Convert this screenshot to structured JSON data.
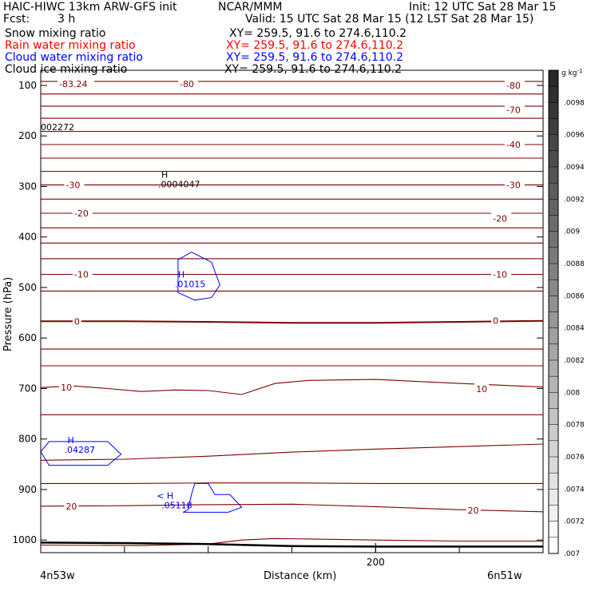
{
  "header": {
    "model": "HAIC-HIWC 13km ARW-GFS init",
    "org": "NCAR/MMM",
    "init": "Init: 12 UTC Sat 28 Mar 15",
    "fcst_label": "Fcst:",
    "fcst_value": "3 h",
    "valid": "Valid: 15 UTC Sat 28 Mar 15 (12 LST Sat 28 Mar 15)"
  },
  "fields": [
    {
      "name": "Snow mixing ratio",
      "xy": "XY= 259.5, 91.6 to 274.6,110.2",
      "color": "#000000"
    },
    {
      "name": "Rain water mixing ratio",
      "xy": "XY= 259.5, 91.6 to 274.6,110.2",
      "color": "#ff0000"
    },
    {
      "name": "Cloud water mixing ratio",
      "xy": "XY= 259.5, 91.6 to 274.6,110.2",
      "color": "#0000ff"
    },
    {
      "name": "Cloud ice mixing ratio",
      "xy": "XY= 259.5, 91.6 to 274.6,110.2",
      "color": "#000000"
    }
  ],
  "chart_data": {
    "type": "contour",
    "xlabel": "Distance (km)",
    "ylabel": "Pressure (hPa)",
    "xlim": [
      0,
      300
    ],
    "ylim": [
      1025,
      70
    ],
    "yscale": "linear",
    "x_ticks": [
      {
        "value": 200,
        "label": "200"
      }
    ],
    "x_minor": [
      0,
      50,
      100,
      150,
      200,
      250,
      300
    ],
    "y_ticks": [
      {
        "value": 100,
        "label": "100"
      },
      {
        "value": 200,
        "label": "200"
      },
      {
        "value": 300,
        "label": "300"
      },
      {
        "value": 400,
        "label": "400"
      },
      {
        "value": 500,
        "label": "500"
      },
      {
        "value": 600,
        "label": "600"
      },
      {
        "value": 700,
        "label": "700"
      },
      {
        "value": 800,
        "label": "800"
      },
      {
        "value": 900,
        "label": "900"
      },
      {
        "value": 1000,
        "label": "1000"
      }
    ],
    "left_endpoint": "4n53w",
    "right_endpoint": "6n51w",
    "temperature_color": "#800000",
    "temperature_isotherms": [
      {
        "x": [
          0,
          300
        ],
        "p": [
          92,
          92
        ]
      },
      {
        "x": [
          0,
          300
        ],
        "p": [
          117,
          117
        ]
      },
      {
        "x": [
          0,
          300
        ],
        "p": [
          141,
          141
        ]
      },
      {
        "x": [
          0,
          300
        ],
        "p": [
          165,
          165
        ]
      },
      {
        "x": [
          0,
          300
        ],
        "p": [
          191,
          191
        ]
      },
      {
        "x": [
          0,
          300
        ],
        "p": [
          217,
          217
        ]
      },
      {
        "x": [
          0,
          300
        ],
        "p": [
          244,
          244
        ]
      },
      {
        "x": [
          0,
          300
        ],
        "p": [
          270,
          270
        ]
      },
      {
        "x": [
          0,
          300
        ],
        "p": [
          297,
          297
        ]
      },
      {
        "x": [
          0,
          300
        ],
        "p": [
          325,
          325
        ]
      },
      {
        "x": [
          0,
          300
        ],
        "p": [
          353,
          353
        ]
      },
      {
        "x": [
          0,
          300
        ],
        "p": [
          382,
          382
        ]
      },
      {
        "x": [
          0,
          300
        ],
        "p": [
          412,
          412
        ]
      },
      {
        "x": [
          0,
          300
        ],
        "p": [
          443,
          443
        ]
      },
      {
        "x": [
          0,
          300
        ],
        "p": [
          474,
          474
        ]
      },
      {
        "x": [
          0,
          300
        ],
        "p": [
          507,
          507
        ]
      },
      {
        "x": [
          0,
          50,
          100,
          150,
          200,
          250,
          300
        ],
        "p": [
          567,
          567,
          568,
          570,
          570,
          568,
          566
        ],
        "bold": true
      },
      {
        "x": [
          0,
          300
        ],
        "p": [
          622,
          622
        ]
      },
      {
        "x": [
          0,
          300
        ],
        "p": [
          655,
          655
        ]
      },
      {
        "x": [
          0,
          20,
          40,
          60,
          80,
          100,
          120,
          140,
          160,
          180,
          200,
          250,
          300
        ],
        "p": [
          698,
          695,
          700,
          706,
          703,
          704,
          712,
          690,
          684,
          683,
          682,
          690,
          697
        ]
      },
      {
        "x": [
          0,
          50,
          100,
          150,
          200,
          250,
          300
        ],
        "p": [
          752,
          752,
          752,
          752,
          752,
          752,
          752
        ]
      },
      {
        "x": [
          0,
          50,
          100,
          150,
          200,
          250,
          300
        ],
        "p": [
          842,
          840,
          834,
          826,
          820,
          815,
          810
        ]
      },
      {
        "x": [
          0,
          50,
          100,
          150,
          200,
          250,
          300
        ],
        "p": [
          888,
          888,
          887,
          887,
          888,
          888,
          888
        ]
      },
      {
        "x": [
          0,
          50,
          100,
          150,
          200,
          250,
          300
        ],
        "p": [
          933,
          932,
          930,
          929,
          934,
          940,
          944
        ]
      },
      {
        "x": [
          0,
          60,
          100,
          120,
          140,
          200,
          250,
          300
        ],
        "p": [
          1010,
          1011,
          1008,
          1000,
          997,
          1000,
          1002,
          1002
        ]
      }
    ],
    "temperature_labels": [
      {
        "x": 11,
        "p": 97,
        "text": "-83.24"
      },
      {
        "x": 83,
        "p": 97,
        "text": "-80"
      },
      {
        "x": 278,
        "p": 100,
        "text": "-80"
      },
      {
        "x": 278,
        "p": 148,
        "text": "-70"
      },
      {
        "x": 278,
        "p": 217,
        "text": "-40"
      },
      {
        "x": 278,
        "p": 297,
        "text": "-30"
      },
      {
        "x": 15,
        "p": 297,
        "text": "-30"
      },
      {
        "x": 20,
        "p": 353,
        "text": "-20"
      },
      {
        "x": 270,
        "p": 363,
        "text": "-20"
      },
      {
        "x": 20,
        "p": 474,
        "text": "-10"
      },
      {
        "x": 270,
        "p": 474,
        "text": "-10"
      },
      {
        "x": 20,
        "p": 567,
        "text": "0"
      },
      {
        "x": 270,
        "p": 566,
        "text": "0"
      },
      {
        "x": 12,
        "p": 698,
        "text": "10"
      },
      {
        "x": 260,
        "p": 701,
        "text": "10"
      },
      {
        "x": 15,
        "p": 933,
        "text": "20"
      },
      {
        "x": 255,
        "p": 941,
        "text": "20"
      }
    ],
    "ground_line": {
      "x": [
        0,
        50,
        100,
        150,
        200,
        250,
        300
      ],
      "p": [
        1005,
        1006,
        1008,
        1012,
        1013,
        1013,
        1013
      ],
      "color": "#000000"
    },
    "cloud_water_contours": [
      {
        "x": [
          82,
          90,
          102,
          107,
          102,
          92,
          82
        ],
        "p": [
          445,
          430,
          450,
          495,
          520,
          525,
          510
        ],
        "color": "#0000ff"
      },
      {
        "x": [
          0,
          5,
          40,
          48,
          40,
          5,
          0
        ],
        "p": [
          825,
          805,
          805,
          830,
          852,
          852,
          825
        ],
        "color": "#0000ff"
      },
      {
        "x": [
          90,
          92,
          100,
          104,
          113,
          120,
          112,
          85,
          88
        ],
        "p": [
          910,
          888,
          888,
          910,
          910,
          935,
          945,
          945,
          940
        ],
        "color": "#0000ff"
      }
    ],
    "extrema_labels": [
      {
        "x": 72,
        "p": 292,
        "h": "H",
        "value": ".0004047",
        "color": "#000000"
      },
      {
        "x": 82,
        "p": 490,
        "h": "H",
        "value": ".01015",
        "color": "#0000ff"
      },
      {
        "x": 16,
        "p": 818,
        "h": "H",
        "value": ".04287",
        "color": "#0000ff"
      },
      {
        "x": 74,
        "p": 928,
        "h": "< H",
        "value": ".05118",
        "color": "#0000ff"
      }
    ],
    "edge_value_label": {
      "x": 0,
      "p": 182,
      "text": "002272",
      "color": "#000000"
    },
    "colorbar": {
      "unit": "g kg",
      "unit_exp": "-1",
      "labels": [
        ".0098",
        ".0096",
        ".0094",
        ".0092",
        ".009",
        ".0088",
        ".0086",
        ".0084",
        ".0082",
        ".008",
        ".0078",
        ".0076",
        ".0074",
        ".0072",
        ".007"
      ]
    }
  }
}
